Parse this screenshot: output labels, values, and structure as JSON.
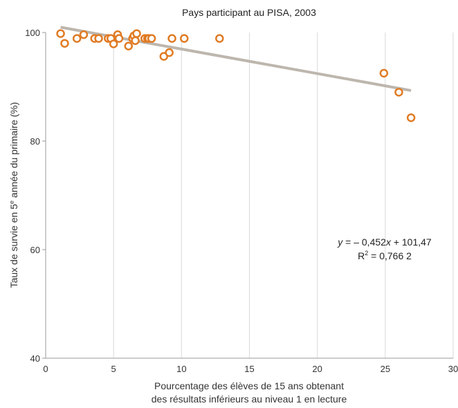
{
  "chart_data": {
    "type": "scatter",
    "title": "Pays participant au PISA, 2003",
    "xlabel_line1": "Pourcentage des élèves de 15 ans obtenant",
    "xlabel_line2": "des résultats inférieurs au niveau 1 en lecture",
    "ylabel_pre": "Taux de survie en 5",
    "ylabel_sup": "e",
    "ylabel_post": " année du primaire (%)",
    "xlim": [
      0,
      30
    ],
    "ylim": [
      40,
      100
    ],
    "x_ticks": [
      {
        "value": 0,
        "label": "0"
      },
      {
        "value": 5,
        "label": "5"
      },
      {
        "value": 10,
        "label": "10"
      },
      {
        "value": 15,
        "label": "15"
      },
      {
        "value": 20,
        "label": "20"
      },
      {
        "value": 25,
        "label": "25"
      },
      {
        "value": 30,
        "label": "30"
      }
    ],
    "y_ticks": [
      {
        "value": 40,
        "label": "40"
      },
      {
        "value": 60,
        "label": "60"
      },
      {
        "value": 80,
        "label": "80"
      },
      {
        "value": 100,
        "label": "100"
      }
    ],
    "grid": "vertical",
    "points": [
      {
        "x": 1.1,
        "y": 99.8
      },
      {
        "x": 1.4,
        "y": 98.0
      },
      {
        "x": 2.3,
        "y": 98.9
      },
      {
        "x": 2.8,
        "y": 99.6
      },
      {
        "x": 3.6,
        "y": 98.9
      },
      {
        "x": 3.9,
        "y": 98.9
      },
      {
        "x": 4.6,
        "y": 98.9
      },
      {
        "x": 4.8,
        "y": 98.9
      },
      {
        "x": 5.0,
        "y": 97.9
      },
      {
        "x": 5.3,
        "y": 99.6
      },
      {
        "x": 5.4,
        "y": 98.9
      },
      {
        "x": 6.1,
        "y": 97.5
      },
      {
        "x": 6.4,
        "y": 98.9
      },
      {
        "x": 6.5,
        "y": 99.4
      },
      {
        "x": 6.6,
        "y": 98.5
      },
      {
        "x": 6.7,
        "y": 99.8
      },
      {
        "x": 7.3,
        "y": 98.9
      },
      {
        "x": 7.5,
        "y": 98.9
      },
      {
        "x": 7.6,
        "y": 98.9
      },
      {
        "x": 7.8,
        "y": 98.9
      },
      {
        "x": 8.7,
        "y": 95.6
      },
      {
        "x": 9.1,
        "y": 96.3
      },
      {
        "x": 9.3,
        "y": 98.9
      },
      {
        "x": 10.2,
        "y": 98.9
      },
      {
        "x": 12.8,
        "y": 98.9
      },
      {
        "x": 24.9,
        "y": 92.5
      },
      {
        "x": 26.0,
        "y": 89.0
      },
      {
        "x": 26.9,
        "y": 84.3
      }
    ],
    "trendline": {
      "slope": -0.452,
      "intercept": 101.47,
      "x_range": [
        1.1,
        26.9
      ]
    },
    "equation": {
      "y": "y",
      "eq_mid": " = – 0,452",
      "x": "x",
      "eq_end": " + 101,47",
      "r_label": "R",
      "r_sup": "2",
      "r_value": " = 0,766 2"
    },
    "colors": {
      "marker": "#e07b24",
      "trendline": "#bdb6ad",
      "grid": "#d9d9d9",
      "axis": "#999999"
    }
  }
}
